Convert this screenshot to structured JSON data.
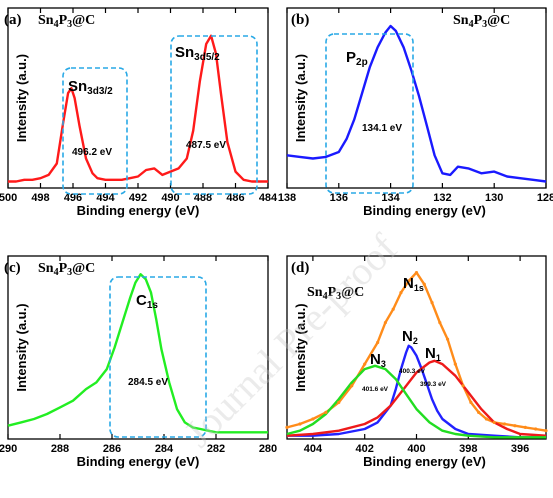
{
  "chart_data": [
    {
      "type": "line",
      "panel_label": "(a)",
      "title": "Sn4P3@C",
      "xlabel": "Binding energy (eV)",
      "ylabel": "Intensity (a.u.)",
      "xlim": [
        500,
        484
      ],
      "xticks": [
        500,
        498,
        496,
        494,
        492,
        490,
        488,
        486,
        484
      ],
      "ylim": [
        0,
        1.1
      ],
      "series": [
        {
          "color": "#ff1a1a",
          "x": [
            500,
            499.5,
            499,
            498.5,
            498,
            497.5,
            497,
            496.6,
            496.3,
            496.1,
            495.9,
            495.6,
            495.2,
            494.8,
            494.5,
            494,
            493.5,
            493,
            492.5,
            492,
            491.5,
            491,
            490.5,
            490,
            489.5,
            489,
            488.6,
            488.2,
            487.8,
            487.5,
            487.2,
            486.9,
            486.5,
            486,
            485.5,
            485,
            484.5,
            484
          ],
          "y": [
            0.04,
            0.04,
            0.05,
            0.05,
            0.06,
            0.08,
            0.15,
            0.4,
            0.58,
            0.61,
            0.55,
            0.38,
            0.18,
            0.09,
            0.06,
            0.05,
            0.05,
            0.05,
            0.06,
            0.07,
            0.11,
            0.12,
            0.08,
            0.1,
            0.12,
            0.18,
            0.35,
            0.65,
            0.88,
            0.93,
            0.82,
            0.58,
            0.28,
            0.1,
            0.05,
            0.04,
            0.04,
            0.04
          ]
        }
      ],
      "annotations": [
        {
          "type": "orbital",
          "base": "Sn",
          "sub": "3d3/2"
        },
        {
          "type": "orbital",
          "base": "Sn",
          "sub": "3d5/2"
        },
        {
          "type": "value",
          "text": "496.2 eV"
        },
        {
          "type": "value",
          "text": "487.5 eV"
        }
      ]
    },
    {
      "type": "line",
      "panel_label": "(b)",
      "title": "Sn4P3@C",
      "xlabel": "Binding energy (eV)",
      "ylabel": "Intensity (a.u.)",
      "xlim": [
        138,
        128
      ],
      "xticks": [
        138,
        136,
        134,
        132,
        130,
        128
      ],
      "ylim": [
        0,
        1.1
      ],
      "series": [
        {
          "color": "#1a1aff",
          "x": [
            138,
            137.5,
            137,
            136.5,
            136,
            135.7,
            135.4,
            135.1,
            134.8,
            134.5,
            134.2,
            134,
            133.8,
            133.5,
            133.2,
            132.9,
            132.6,
            132.3,
            132,
            131.7,
            131.4,
            131,
            130.5,
            130,
            129.5,
            129,
            128.5,
            128
          ],
          "y": [
            0.2,
            0.19,
            0.18,
            0.19,
            0.22,
            0.3,
            0.42,
            0.58,
            0.74,
            0.86,
            0.95,
            0.99,
            0.96,
            0.86,
            0.72,
            0.56,
            0.38,
            0.2,
            0.09,
            0.08,
            0.13,
            0.12,
            0.09,
            0.1,
            0.07,
            0.06,
            0.05,
            0.04
          ]
        }
      ],
      "annotations": [
        {
          "type": "orbital",
          "base": "P",
          "sub": "2p"
        },
        {
          "type": "value",
          "text": "134.1 eV"
        }
      ]
    },
    {
      "type": "line",
      "panel_label": "(c)",
      "title": "Sn4P3@C",
      "xlabel": "Binding energy (eV)",
      "ylabel": "Intensity (a.u.)",
      "xlim": [
        290,
        280
      ],
      "xticks": [
        290,
        288,
        286,
        284,
        282,
        280
      ],
      "ylim": [
        0,
        1.1
      ],
      "series": [
        {
          "color": "#22ee22",
          "x": [
            290,
            289.5,
            289,
            288.5,
            288,
            287.5,
            287,
            286.6,
            286.2,
            285.9,
            285.6,
            285.3,
            285.1,
            284.9,
            284.7,
            284.5,
            284.3,
            284.1,
            283.8,
            283.5,
            283.2,
            282.9,
            282.6,
            282.3,
            282,
            281.5,
            281,
            280.5,
            280
          ],
          "y": [
            0.08,
            0.1,
            0.12,
            0.15,
            0.19,
            0.23,
            0.3,
            0.34,
            0.42,
            0.55,
            0.7,
            0.85,
            0.94,
            0.99,
            0.96,
            0.88,
            0.72,
            0.54,
            0.34,
            0.18,
            0.1,
            0.07,
            0.06,
            0.05,
            0.04,
            0.04,
            0.04,
            0.04,
            0.04
          ]
        }
      ],
      "annotations": [
        {
          "type": "orbital",
          "base": "C",
          "sub": "1s"
        },
        {
          "type": "value",
          "text": "284.5 eV"
        }
      ]
    },
    {
      "type": "line",
      "panel_label": "(d)",
      "title": "Sn4P3@C",
      "xlabel": "Binding energy (eV)",
      "ylabel": "Intensity (a.u.)",
      "xlim": [
        405,
        395
      ],
      "xticks": [
        404,
        402,
        400,
        398,
        396
      ],
      "ylim": [
        0,
        1.1
      ],
      "series": [
        {
          "color": "#ff8c1a",
          "x": [
            405,
            404.5,
            404,
            403.5,
            403,
            402.5,
            402,
            401.5,
            401.2,
            400.9,
            400.6,
            400.3,
            400,
            399.7,
            399.4,
            399.1,
            398.8,
            398.5,
            398.2,
            397.9,
            397.6,
            397.3,
            397,
            396.6,
            396.2,
            395.8,
            395.4,
            395
          ],
          "y": [
            0.07,
            0.09,
            0.12,
            0.16,
            0.22,
            0.32,
            0.45,
            0.58,
            0.7,
            0.78,
            0.88,
            0.95,
            1.0,
            0.93,
            0.82,
            0.7,
            0.6,
            0.45,
            0.32,
            0.22,
            0.16,
            0.12,
            0.1,
            0.09,
            0.08,
            0.07,
            0.06,
            0.05
          ]
        },
        {
          "color": "#2222ff",
          "x": [
            405,
            404,
            403,
            402,
            401.5,
            401,
            400.8,
            400.6,
            400.4,
            400.3,
            400.2,
            400,
            399.8,
            399.6,
            399.4,
            399.2,
            399,
            398.5,
            398,
            397,
            396,
            395
          ],
          "y": [
            0.02,
            0.02,
            0.03,
            0.06,
            0.1,
            0.2,
            0.3,
            0.42,
            0.52,
            0.56,
            0.55,
            0.5,
            0.42,
            0.33,
            0.24,
            0.17,
            0.12,
            0.06,
            0.03,
            0.02,
            0.01,
            0.01
          ]
        },
        {
          "color": "#ee1a1a",
          "x": [
            405,
            404,
            403,
            402,
            401.5,
            401,
            400.5,
            400,
            399.5,
            399.3,
            399,
            398.5,
            398,
            397.5,
            397,
            396.5,
            396,
            395
          ],
          "y": [
            0.02,
            0.03,
            0.05,
            0.09,
            0.13,
            0.2,
            0.3,
            0.4,
            0.46,
            0.47,
            0.45,
            0.38,
            0.28,
            0.18,
            0.1,
            0.06,
            0.03,
            0.02
          ]
        },
        {
          "color": "#22dd22",
          "x": [
            405,
            404.5,
            404,
            403.5,
            403,
            402.5,
            402,
            401.6,
            401.2,
            400.8,
            400.4,
            400,
            399.5,
            399,
            398.5,
            398,
            397,
            396,
            395
          ],
          "y": [
            0.03,
            0.05,
            0.09,
            0.15,
            0.24,
            0.34,
            0.42,
            0.44,
            0.42,
            0.36,
            0.27,
            0.18,
            0.1,
            0.05,
            0.03,
            0.02,
            0.01,
            0.01,
            0.01
          ]
        }
      ],
      "annotations": [
        {
          "type": "orbital",
          "base": "N",
          "sub": "1s"
        },
        {
          "type": "orbital",
          "base": "N",
          "sub": "2"
        },
        {
          "type": "orbital",
          "base": "N",
          "sub": "1"
        },
        {
          "type": "orbital",
          "base": "N",
          "sub": "3"
        },
        {
          "type": "value",
          "text": "400.3 eV"
        },
        {
          "type": "value",
          "text": "399.3 eV"
        },
        {
          "type": "value",
          "text": "401.6 eV"
        }
      ]
    }
  ],
  "watermark": "Journal Pre-proof"
}
